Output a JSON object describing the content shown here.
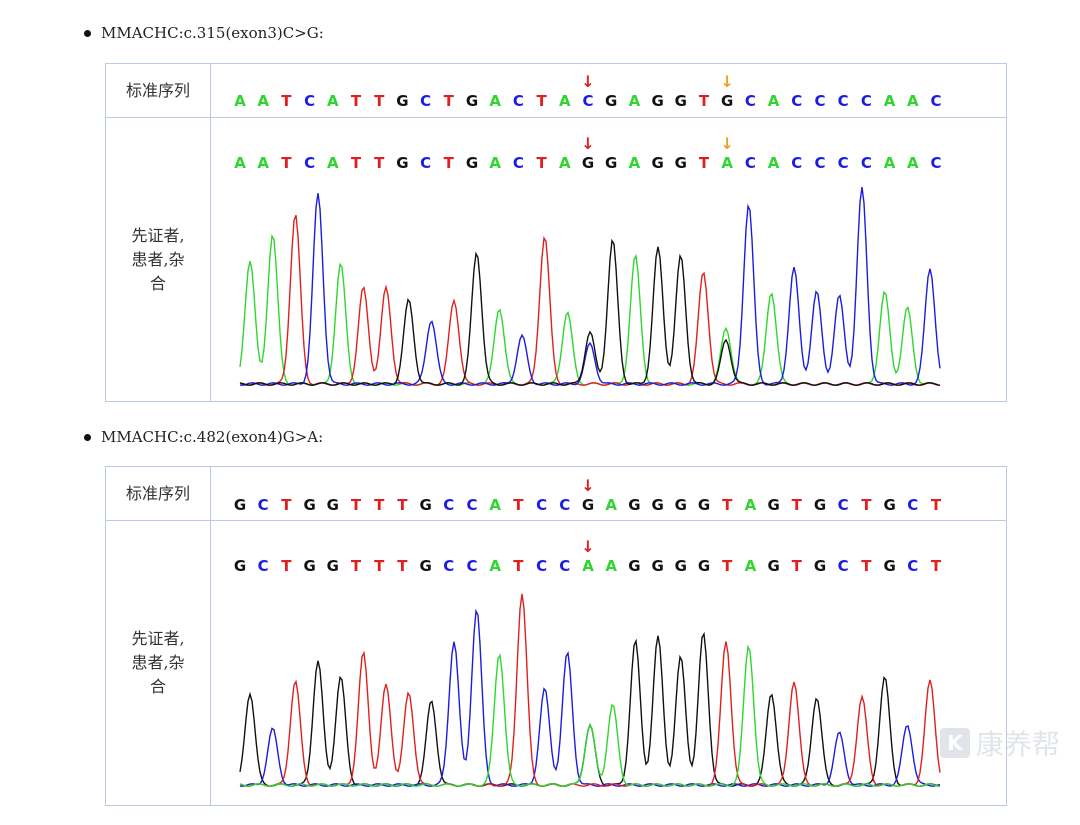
{
  "colors": {
    "A": "#2fd62f",
    "T": "#e02020",
    "C": "#1c1ce0",
    "G": "#111111",
    "marker_red": "#e02020",
    "marker_orange": "#f0a020",
    "border": "#b9cbe3"
  },
  "sections": [
    {
      "title": "MMACHC:c.315(exon3)C>G:",
      "ref_label": "标准序列",
      "patient_label": "先证者,\n患者,杂\n合",
      "ref_seq": "AATCATTGCTGACTACGAGGTGCACCCCAAC",
      "patient_seq": "AATCATTGCTGACTAGGAGGTACACCCCAAC",
      "markers": [
        {
          "index": 15,
          "color": "red"
        },
        {
          "index": 21,
          "color": "orange"
        }
      ]
    },
    {
      "title": "MMACHC:c.482(exon4)G>A:",
      "ref_label": "标准序列",
      "patient_label": "先证者,\n患者,杂\n合",
      "ref_seq": "GCTGGTTTGCCATCCGAGGGGTAGTGCTGCT",
      "patient_seq": "GCTGGTTTGCCATCCAAGGGGTAGTGCTGCT",
      "markers": [
        {
          "index": 15,
          "color": "red"
        }
      ]
    }
  ],
  "watermark": "康养帮"
}
